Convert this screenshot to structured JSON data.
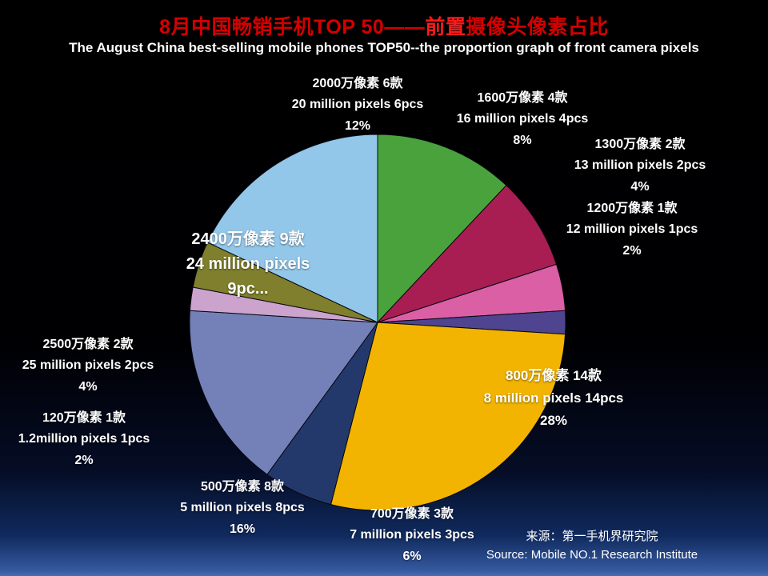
{
  "slide": {
    "title_parts": [
      {
        "text": "8月中国畅销手机TOP 50——",
        "color": "#d40000"
      },
      {
        "text": "前置",
        "color": "#ff1a1a"
      },
      {
        "text": "摄像头像素占比",
        "color": "#d40000"
      }
    ],
    "subtitle": "The August China best-selling mobile phones TOP50--the proportion graph of front camera pixels",
    "source": {
      "line1_zh": "来源：第一手机界研究院",
      "line2_en": "Source: Mobile NO.1 Research Institute"
    }
  },
  "chart_data": {
    "type": "pie",
    "title_zh": "8月中国畅销手机TOP 50——前置摄像头像素占比",
    "title_en": "The August China best-selling mobile phones TOP50--the proportion graph of front camera pixels",
    "start_angle": "12 o'clock",
    "direction": "clockwise",
    "total_pcs": 50,
    "legend_position": "none (labels around slices)",
    "slices": [
      {
        "id": "2000w",
        "pixels": "20 million",
        "count": 6,
        "percent": 12,
        "color": "#4AA23C",
        "label_zh": "2000万像素 6款",
        "label_en": "20 million pixels 6pcs",
        "label_pct": "12%"
      },
      {
        "id": "1600w",
        "pixels": "16 million",
        "count": 4,
        "percent": 8,
        "color": "#A81E53",
        "label_zh": "1600万像素 4款",
        "label_en": "16 million pixels 4pcs",
        "label_pct": "8%"
      },
      {
        "id": "1300w",
        "pixels": "13 million",
        "count": 2,
        "percent": 4,
        "color": "#DB5FA5",
        "label_zh": "1300万像素 2款",
        "label_en": "13 million pixels 2pcs",
        "label_pct": "4%"
      },
      {
        "id": "1200w",
        "pixels": "12 million",
        "count": 1,
        "percent": 2,
        "color": "#4F4490",
        "label_zh": "1200万像素 1款",
        "label_en": "12 million pixels 1pcs",
        "label_pct": "2%"
      },
      {
        "id": "800w",
        "pixels": "8 million",
        "count": 14,
        "percent": 28,
        "color": "#F2B400",
        "label_zh": "800万像素 14款",
        "label_en": "8 million pixels 14pcs",
        "label_pct": "28%"
      },
      {
        "id": "700w",
        "pixels": "7 million",
        "count": 3,
        "percent": 6,
        "color": "#24396B",
        "label_zh": "700万像素 3款",
        "label_en": "7 million pixels 3pcs",
        "label_pct": "6%"
      },
      {
        "id": "500w",
        "pixels": "5 million",
        "count": 8,
        "percent": 16,
        "color": "#7381B8",
        "label_zh": "500万像素 8款",
        "label_en": "5 million pixels 8pcs",
        "label_pct": "16%"
      },
      {
        "id": "120w",
        "pixels": "1.2 million",
        "count": 1,
        "percent": 2,
        "color": "#CBA3CD",
        "label_zh": "120万像素 1款",
        "label_en": "1.2million pixels 1pcs",
        "label_pct": "2%"
      },
      {
        "id": "2500w",
        "pixels": "25 million",
        "count": 2,
        "percent": 4,
        "color": "#7F7F2D",
        "label_zh": "2500万像素 2款",
        "label_en": "25 million pixels 2pcs",
        "label_pct": "4%"
      },
      {
        "id": "2400w",
        "pixels": "24 million",
        "count": 9,
        "percent": 18,
        "color": "#92C7EA",
        "label_zh": "2400万像素 9款",
        "label_en": "24 million pixels",
        "label_pct": "9pc..."
      }
    ]
  }
}
